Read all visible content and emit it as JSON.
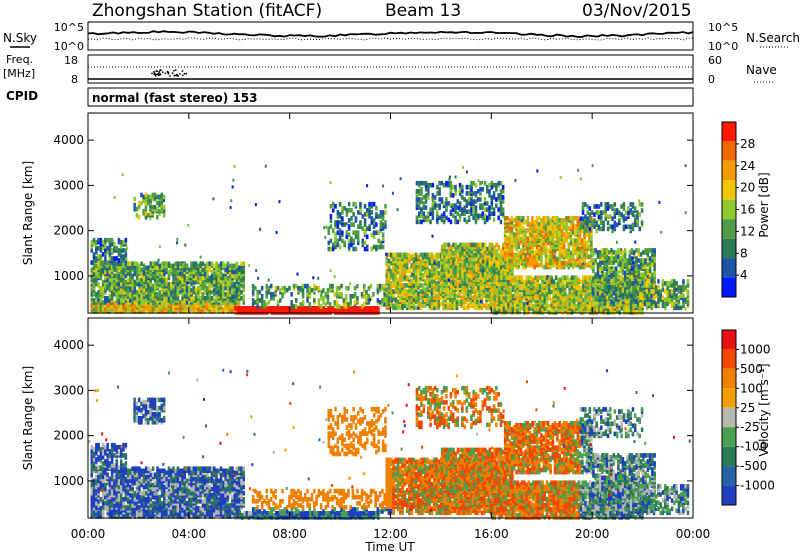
{
  "header": {
    "station": "Zhongshan Station (fitACF)",
    "beam": "Beam 13",
    "date": "03/Nov/2015"
  },
  "noise_panel": {
    "left_label": "N.Sky",
    "left_ticks": [
      "10^5",
      "10^0"
    ],
    "right_label": "N.Search",
    "right_ticks": [
      "10^5",
      "10^0"
    ]
  },
  "freq_panel": {
    "left_label_line1": "Freq.",
    "left_label_line2": "[MHz]",
    "left_ticks": [
      "18",
      "8"
    ],
    "right_label": "Nave",
    "right_ticks": [
      "60",
      "0"
    ]
  },
  "cpid": {
    "label": "CPID",
    "mode": "normal (fast stereo) 153"
  },
  "chart_data": {
    "type": "heatmap",
    "x_axis": {
      "label": "Time UT",
      "ticks": [
        "00:00",
        "04:00",
        "08:00",
        "12:00",
        "16:00",
        "20:00",
        "00:00"
      ],
      "range_hours": [
        0,
        24
      ]
    },
    "y_axis": {
      "label": "Slant Range [km]",
      "ticks": [
        "1000",
        "2000",
        "3000",
        "4000"
      ],
      "range_km": [
        180,
        4600
      ]
    },
    "panels": [
      {
        "quantity": "Power",
        "colorbar_label": "Power [dB]",
        "colorbar_ticks": [
          "4",
          "8",
          "12",
          "16",
          "20",
          "24",
          "28"
        ],
        "colorbar_colors": [
          "#0018ff",
          "#1f55a8",
          "#2e7a57",
          "#4f9c46",
          "#90c830",
          "#f0c800",
          "#f39a00",
          "#f06800",
          "#ff1800"
        ]
      },
      {
        "quantity": "Velocity",
        "colorbar_label": "Velocity [m s⁻¹]",
        "colorbar_ticks": [
          "1000",
          "500",
          "100",
          "25",
          "-25",
          "-100",
          "-500",
          "-1000"
        ],
        "colorbar_colors": [
          "#1f3fc0",
          "#2565a5",
          "#2e7a57",
          "#48a050",
          "#b8b8b0",
          "#f0a000",
          "#f08000",
          "#f04800",
          "#e81010"
        ]
      }
    ]
  }
}
